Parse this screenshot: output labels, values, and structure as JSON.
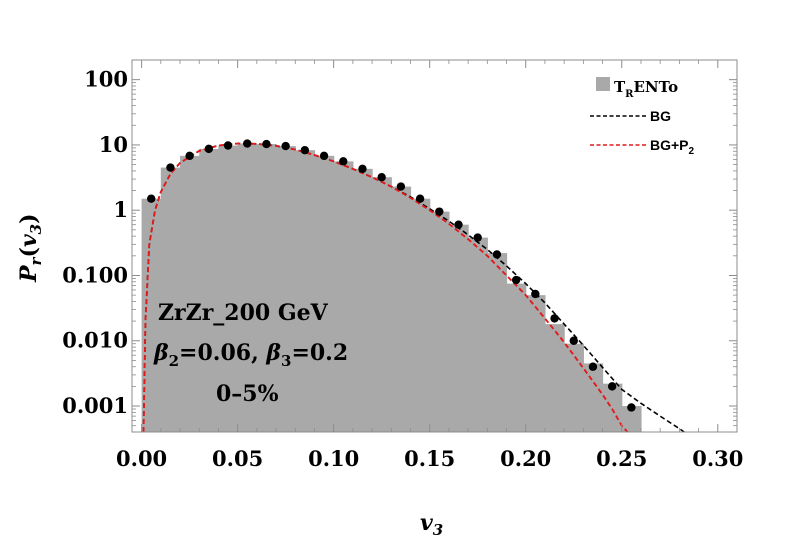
{
  "chart_data": {
    "type": "histogram+line+scatter",
    "xlabel": {
      "main": "v",
      "sub": "3"
    },
    "ylabel": {
      "main": "P",
      "sub": "r",
      "arg_main": "v",
      "arg_sub": "3"
    },
    "xlim": [
      -0.005,
      0.31
    ],
    "ylim": [
      0.0004,
      200
    ],
    "yscale": "log",
    "x_ticks": [
      0.0,
      0.05,
      0.1,
      0.15,
      0.2,
      0.25,
      0.3
    ],
    "x_tick_labels": [
      "0.00",
      "0.05",
      "0.10",
      "0.15",
      "0.20",
      "0.25",
      "0.30"
    ],
    "y_ticks": [
      0.001,
      0.01,
      0.1,
      1,
      10,
      100
    ],
    "y_tick_labels": [
      "0.001",
      "0.010",
      "0.100",
      "1",
      "10",
      "100"
    ],
    "legend_position": "top-right",
    "legend": [
      {
        "label_main": "T",
        "label_sub": "R",
        "label_rest": "ENTo",
        "style": "gray-box",
        "color": "#a9a9a9"
      },
      {
        "label_main": "BG",
        "label_sub": "",
        "style": "dashed",
        "color": "#000000"
      },
      {
        "label_main": "BG+P",
        "label_sub": "2",
        "style": "dashed",
        "color": "#e31a1c"
      }
    ],
    "annotation": {
      "line1": "ZrZr_200 GeV",
      "beta2_sym": "β",
      "beta2_sub": "2",
      "beta2_val": "=0.06, ",
      "beta3_sym": "β",
      "beta3_sub": "3",
      "beta3_val": "=0.2",
      "line3": "0–5%"
    },
    "histogram": {
      "name": "TRENTo",
      "bin_width": 0.01,
      "bins": [
        [
          0.0,
          1.5
        ],
        [
          0.01,
          4.5
        ],
        [
          0.02,
          6.8
        ],
        [
          0.03,
          8.7
        ],
        [
          0.04,
          9.8
        ],
        [
          0.05,
          10.5
        ],
        [
          0.06,
          10.3
        ],
        [
          0.07,
          9.6
        ],
        [
          0.08,
          8.3
        ],
        [
          0.09,
          6.8
        ],
        [
          0.1,
          5.6
        ],
        [
          0.11,
          4.3
        ],
        [
          0.12,
          3.2
        ],
        [
          0.13,
          2.3
        ],
        [
          0.14,
          1.5
        ],
        [
          0.15,
          0.95
        ],
        [
          0.16,
          0.6
        ],
        [
          0.17,
          0.38
        ],
        [
          0.18,
          0.22
        ],
        [
          0.19,
          0.075
        ],
        [
          0.2,
          0.05
        ],
        [
          0.21,
          0.018
        ],
        [
          0.22,
          0.009
        ],
        [
          0.23,
          0.0045
        ],
        [
          0.24,
          0.0022
        ],
        [
          0.25,
          0.001
        ]
      ]
    },
    "points": {
      "x": [
        0.005,
        0.015,
        0.025,
        0.035,
        0.045,
        0.055,
        0.065,
        0.075,
        0.085,
        0.095,
        0.105,
        0.115,
        0.125,
        0.135,
        0.145,
        0.155,
        0.165,
        0.175,
        0.185,
        0.195,
        0.205,
        0.215,
        0.225,
        0.235,
        0.245,
        0.255
      ],
      "y": [
        1.5,
        4.5,
        6.8,
        8.7,
        9.8,
        10.5,
        10.3,
        9.6,
        8.3,
        6.8,
        5.6,
        4.3,
        3.2,
        2.3,
        1.5,
        0.95,
        0.6,
        0.38,
        0.21,
        0.085,
        0.052,
        0.022,
        0.01,
        0.004,
        0.002,
        0.00095
      ]
    },
    "curves": {
      "BG": {
        "x": [
          0.001,
          0.002,
          0.004,
          0.007,
          0.01,
          0.015,
          0.02,
          0.03,
          0.04,
          0.05,
          0.06,
          0.07,
          0.08,
          0.09,
          0.1,
          0.11,
          0.12,
          0.13,
          0.14,
          0.15,
          0.16,
          0.17,
          0.18,
          0.19,
          0.2,
          0.21,
          0.22,
          0.23,
          0.24,
          0.25,
          0.26,
          0.27,
          0.28,
          0.2825
        ],
        "y": [
          0.0004,
          0.02,
          0.3,
          1.0,
          1.9,
          3.6,
          5.3,
          8.1,
          9.8,
          10.5,
          10.4,
          9.7,
          8.5,
          7.0,
          5.6,
          4.3,
          3.2,
          2.3,
          1.6,
          1.05,
          0.68,
          0.42,
          0.25,
          0.14,
          0.075,
          0.038,
          0.018,
          0.0085,
          0.0039,
          0.0018,
          0.0011,
          0.0007,
          0.00045,
          0.0004
        ]
      },
      "BG+P2": {
        "x": [
          0.001,
          0.002,
          0.004,
          0.007,
          0.01,
          0.015,
          0.02,
          0.03,
          0.04,
          0.05,
          0.06,
          0.07,
          0.08,
          0.09,
          0.1,
          0.11,
          0.12,
          0.13,
          0.14,
          0.15,
          0.16,
          0.17,
          0.18,
          0.19,
          0.2,
          0.21,
          0.22,
          0.23,
          0.24,
          0.245,
          0.25,
          0.253
        ],
        "y": [
          0.0004,
          0.02,
          0.3,
          1.0,
          1.9,
          3.6,
          5.3,
          8.1,
          9.8,
          10.5,
          10.4,
          9.7,
          8.5,
          7.0,
          5.6,
          4.3,
          3.2,
          2.3,
          1.55,
          1.0,
          0.62,
          0.36,
          0.2,
          0.1,
          0.05,
          0.022,
          0.0095,
          0.0038,
          0.0015,
          0.0009,
          0.0005,
          0.0004
        ]
      }
    }
  }
}
